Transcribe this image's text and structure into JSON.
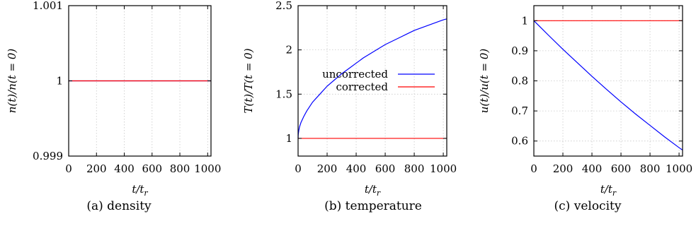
{
  "chart_data": [
    {
      "type": "line",
      "caption": "(a) density",
      "xlabel": "t/t_r",
      "ylabel": "n(t)/n(t = 0)",
      "xlim": [
        0,
        1024
      ],
      "ylim": [
        0.999,
        1.001
      ],
      "xticks": [
        0,
        200,
        400,
        600,
        800,
        1000
      ],
      "xtick_labels": [
        "0",
        "200",
        "400",
        "600",
        "800",
        "1000"
      ],
      "yticks": [
        0.999,
        1,
        1.001
      ],
      "ytick_labels": [
        "0.999",
        "1",
        "1.001"
      ],
      "grid": true,
      "series": [
        {
          "color": "#0000ff",
          "x": [
            0,
            1024
          ],
          "y": [
            1,
            1
          ]
        },
        {
          "color": "#ff0000",
          "x": [
            0,
            1024
          ],
          "y": [
            1,
            1
          ]
        }
      ]
    },
    {
      "type": "line",
      "caption": "(b) temperature",
      "xlabel": "t/t_r",
      "ylabel": "T(t)/T(t = 0)",
      "xlim": [
        0,
        1024
      ],
      "ylim": [
        0.8,
        2.5
      ],
      "xticks": [
        0,
        200,
        400,
        600,
        800,
        1000
      ],
      "xtick_labels": [
        "0",
        "200",
        "400",
        "600",
        "800",
        "1000"
      ],
      "yticks": [
        1,
        1.5,
        2,
        2.5
      ],
      "ytick_labels": [
        "1",
        "1.5",
        "2",
        "2.5"
      ],
      "grid": true,
      "legend_position": "center",
      "series": [
        {
          "name": "uncorrected",
          "color": "#0000ff",
          "x": [
            0,
            1,
            5,
            10,
            20,
            40,
            60,
            80,
            100,
            150,
            200,
            250,
            300,
            350,
            400,
            450,
            500,
            550,
            600,
            650,
            700,
            750,
            800,
            850,
            900,
            950,
            1000,
            1024
          ],
          "y": [
            1.0,
            1.04,
            1.09,
            1.13,
            1.18,
            1.25,
            1.31,
            1.36,
            1.41,
            1.5,
            1.59,
            1.66,
            1.73,
            1.79,
            1.85,
            1.91,
            1.96,
            2.01,
            2.06,
            2.1,
            2.14,
            2.18,
            2.22,
            2.25,
            2.28,
            2.31,
            2.34,
            2.35
          ]
        },
        {
          "name": "corrected",
          "color": "#ff0000",
          "x": [
            0,
            1024
          ],
          "y": [
            1,
            1
          ]
        }
      ]
    },
    {
      "type": "line",
      "caption": "(c) velocity",
      "xlabel": "t/t_r",
      "ylabel": "u(t)/u(t = 0)",
      "xlim": [
        0,
        1024
      ],
      "ylim": [
        0.55,
        1.05
      ],
      "xticks": [
        0,
        200,
        400,
        600,
        800,
        1000
      ],
      "xtick_labels": [
        "0",
        "200",
        "400",
        "600",
        "800",
        "1000"
      ],
      "yticks": [
        0.6,
        0.7,
        0.8,
        0.9,
        1
      ],
      "ytick_labels": [
        "0.6",
        "0.7",
        "0.8",
        "0.9",
        "1"
      ],
      "grid": true,
      "series": [
        {
          "color": "#0000ff",
          "x": [
            0,
            100,
            200,
            300,
            400,
            500,
            600,
            700,
            800,
            900,
            1000,
            1024
          ],
          "y": [
            1.0,
            0.952,
            0.905,
            0.86,
            0.815,
            0.772,
            0.73,
            0.69,
            0.652,
            0.614,
            0.578,
            0.57
          ]
        },
        {
          "color": "#ff0000",
          "x": [
            0,
            1024
          ],
          "y": [
            1,
            1
          ]
        }
      ]
    }
  ]
}
